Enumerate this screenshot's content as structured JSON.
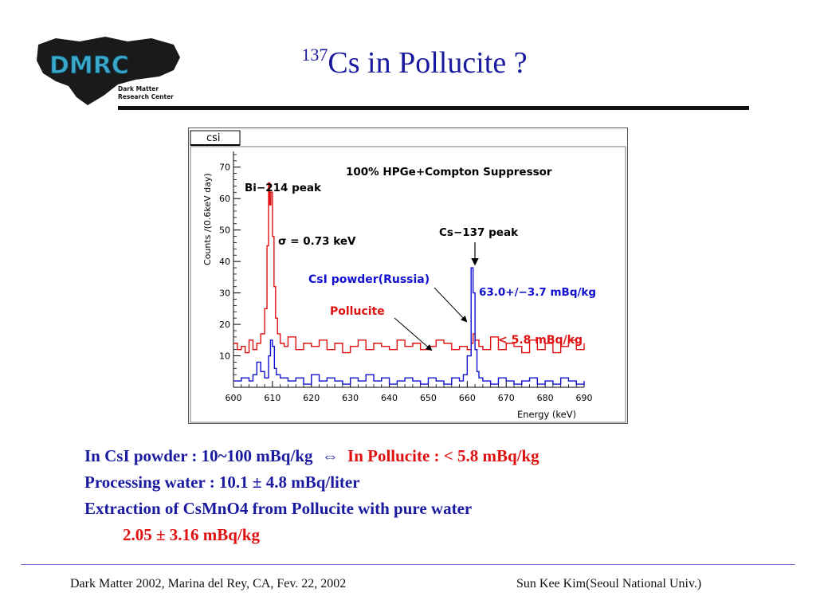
{
  "logo": {
    "acronym": "DMRC",
    "subtitle_line1": "Dark Matter",
    "subtitle_line2": "Research Center"
  },
  "title": {
    "superscript": "137",
    "text": "Cs in Pollucite ?"
  },
  "chart_data": {
    "type": "line",
    "canvas_label": "csi",
    "title": "100% HPGe+Compton Suppressor",
    "xlabel": "Energy (keV)",
    "ylabel": "Counts /(0.6keV day)",
    "xlim": [
      600,
      690
    ],
    "ylim": [
      0,
      75
    ],
    "x_ticks": [
      600,
      610,
      620,
      630,
      640,
      650,
      660,
      670,
      680,
      690
    ],
    "y_ticks": [
      10,
      20,
      30,
      40,
      50,
      60,
      70
    ],
    "grid": false,
    "annotations": {
      "bi_peak": "Bi−214 peak",
      "sigma": "σ = 0.73 keV",
      "cs_peak": "Cs−137 peak",
      "csi_label": "CsI powder(Russia)",
      "pollucite_label": "Pollucite",
      "csi_activity": "63.0+/−3.7 mBq/kg",
      "pollucite_activity": "< 5.8 mBq/kg"
    },
    "series": [
      {
        "name": "Pollucite",
        "color": "#e01010",
        "x": [
          600,
          601,
          602,
          603,
          604,
          605,
          606,
          607,
          608,
          608.6,
          609,
          609.3,
          609.6,
          610,
          610.4,
          610.8,
          611.3,
          612,
          613,
          614,
          616,
          618,
          620,
          622,
          624,
          626,
          628,
          630,
          632,
          634,
          636,
          638,
          640,
          642,
          644,
          646,
          648,
          650,
          652,
          654,
          656,
          658,
          660,
          661,
          661.5,
          662,
          663,
          664,
          666,
          668,
          670,
          672,
          674,
          676,
          678,
          680,
          682,
          684,
          686,
          688,
          690
        ],
        "y": [
          14,
          12,
          13,
          11,
          15,
          12,
          14,
          17,
          25,
          45,
          65,
          58,
          62,
          48,
          32,
          22,
          17,
          14,
          13,
          16,
          12,
          14,
          13,
          15,
          12,
          14,
          11,
          13,
          15,
          12,
          14,
          13,
          12,
          15,
          13,
          14,
          12,
          13,
          15,
          14,
          12,
          13,
          12,
          14,
          17,
          15,
          13,
          12,
          16,
          12,
          14,
          13,
          11,
          15,
          12,
          14,
          11,
          13,
          15,
          12,
          14
        ]
      },
      {
        "name": "CsI powder(Russia)",
        "color": "#1010d0",
        "x": [
          600,
          602,
          604,
          605,
          606,
          607,
          608,
          609,
          609.5,
          610,
          610.5,
          611,
          612,
          614,
          616,
          618,
          620,
          622,
          624,
          626,
          628,
          630,
          632,
          634,
          636,
          638,
          640,
          642,
          644,
          646,
          648,
          650,
          652,
          654,
          656,
          658,
          659,
          660,
          661,
          661.5,
          662,
          662.5,
          663,
          664,
          666,
          668,
          670,
          672,
          674,
          676,
          678,
          680,
          682,
          684,
          686,
          688,
          690
        ],
        "y": [
          2,
          3,
          2,
          4,
          8,
          5,
          3,
          10,
          15,
          13,
          6,
          4,
          3,
          2,
          3,
          1,
          4,
          2,
          3,
          2,
          1,
          3,
          2,
          4,
          2,
          3,
          1,
          2,
          3,
          2,
          1,
          3,
          2,
          1,
          3,
          2,
          4,
          10,
          38,
          30,
          12,
          5,
          3,
          2,
          1,
          3,
          2,
          1,
          2,
          3,
          1,
          2,
          1,
          3,
          2,
          1,
          2
        ]
      }
    ]
  },
  "text_lines": {
    "line1_blue": "In CsI powder : 10~100 mBq/kg",
    "line1_arrow": "⇔",
    "line1_red": "In Pollucite : < 5.8 mBq/kg",
    "line2": "Processing water : 10.1 ± 4.8 mBq/liter",
    "line3": "Extraction of CsMnO4 from Pollucite with pure water",
    "line4_red": "2.05 ± 3.16 mBq/kg"
  },
  "footer": {
    "left": "Dark Matter 2002, Marina del Rey, CA, Fev. 22, 2002",
    "right": "Sun Kee Kim(Seoul National Univ.)"
  }
}
